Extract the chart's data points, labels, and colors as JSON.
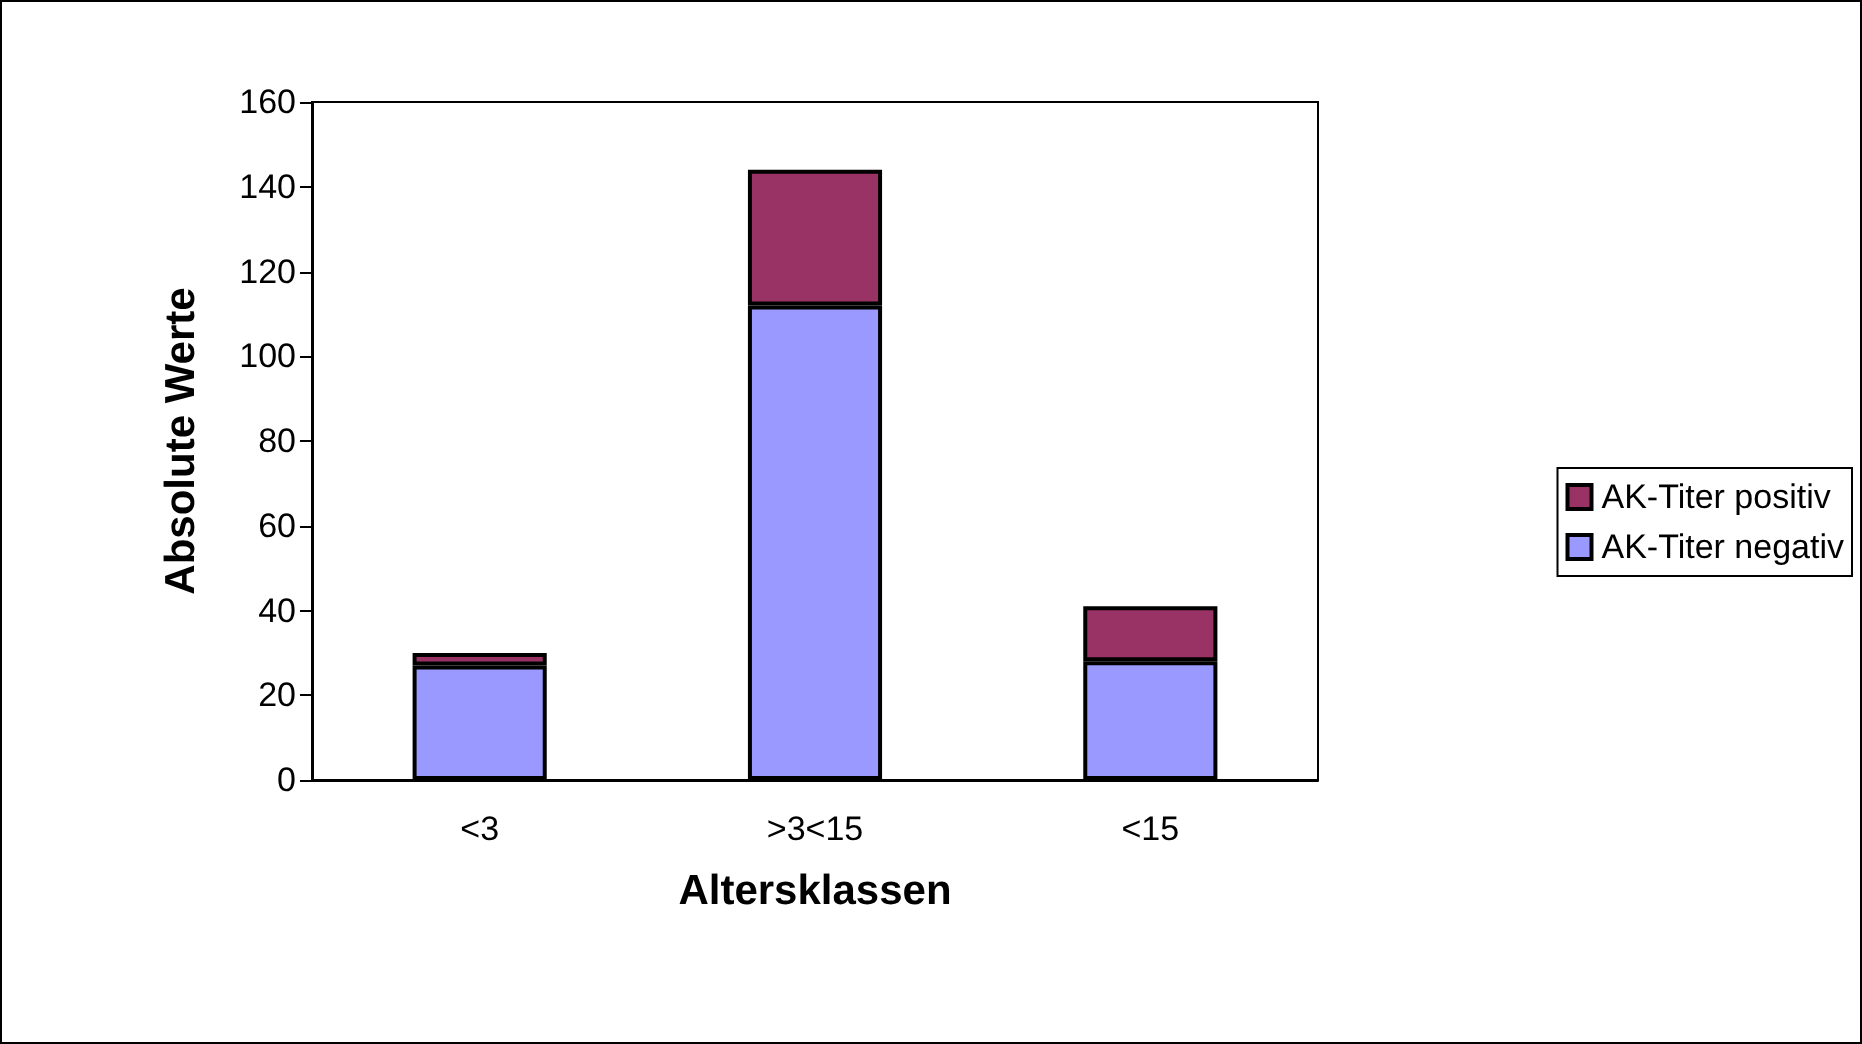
{
  "chart_data": {
    "type": "bar",
    "stacked": true,
    "xlabel": "Altersklassen",
    "ylabel": "Absolute Werte",
    "categories": [
      "<3",
      ">3<15",
      "<15"
    ],
    "series": [
      {
        "name": "AK-Titer negativ",
        "color": "#9999ff",
        "values": [
          27,
          112,
          28
        ]
      },
      {
        "name": "AK-Titer positiv",
        "color": "#993366",
        "values": [
          3,
          32,
          13
        ]
      }
    ],
    "ylim": [
      0,
      160
    ],
    "yticks": [
      0,
      20,
      40,
      60,
      80,
      100,
      120,
      140,
      160
    ],
    "grid": false,
    "legend": "right"
  }
}
